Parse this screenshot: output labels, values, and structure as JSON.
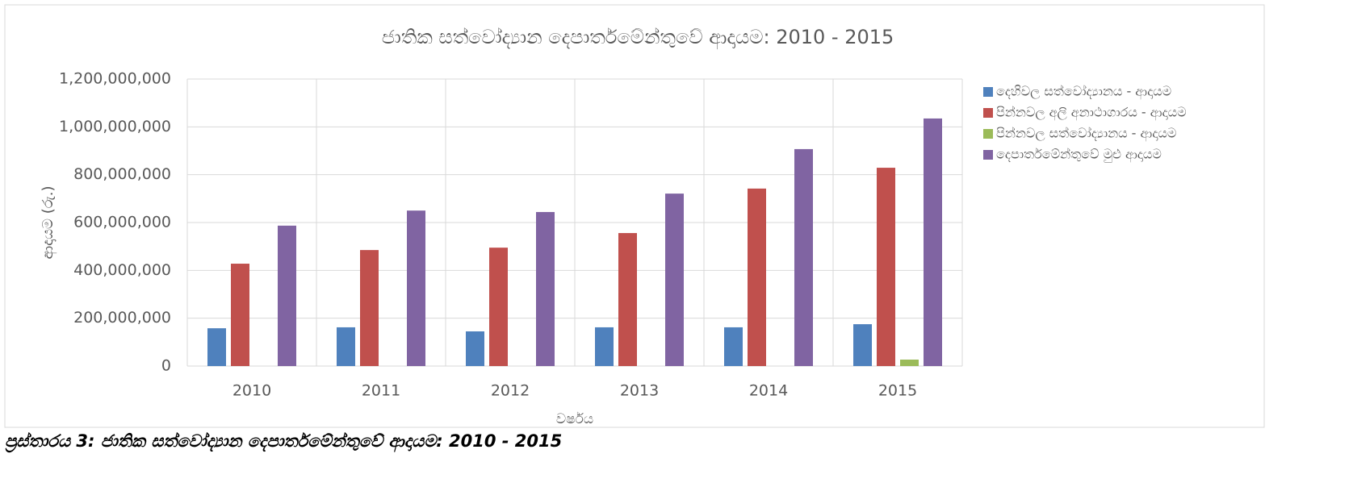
{
  "chart_data": {
    "type": "bar",
    "title": "ජාතික සත්වෝද්‍යාන දෙපාර්තමේන්තුවේ ආදායම: 2010 - 2015",
    "y_label": "ආදායම (රු.)",
    "x_label": "වර්ෂය",
    "caption": "ප්‍රස්තාරය 3: ජාතික සත්වෝද්‍යාන දෙපාර්තමේන්තුවේ ආදායම: 2010 - 2015",
    "categories": [
      "2010",
      "2011",
      "2012",
      "2013",
      "2014",
      "2015"
    ],
    "series": [
      {
        "name": "දෙහිවල සත්වෝද්‍යානය - ආදායම",
        "color": "#4f81bd",
        "values": [
          158000000,
          162000000,
          145000000,
          162000000,
          162000000,
          175000000
        ]
      },
      {
        "name": "පින්නවල අලි අනාථාගාරය  - ආදායම",
        "color": "#c0504d",
        "values": [
          428000000,
          485000000,
          495000000,
          556000000,
          742000000,
          829000000
        ]
      },
      {
        "name": "පින්නවල සත්වෝද්‍යානය  - ආදායම",
        "color": "#9bbb59",
        "values": [
          0,
          0,
          0,
          0,
          0,
          27000000
        ]
      },
      {
        "name": "දෙපාර්තමේන්තුවේ මුළු  ආදායම",
        "color": "#8064a2",
        "values": [
          587000000,
          650000000,
          644000000,
          721000000,
          907000000,
          1035000000
        ]
      }
    ],
    "ylim": [
      0,
      1200000000
    ],
    "yticks": [
      0,
      {
        "value": 200000000,
        "label": "200,000,000"
      },
      {
        "value": 400000000,
        "label": "400,000,000"
      },
      {
        "value": 600000000,
        "label": "600,000,000"
      },
      {
        "value": 800000000,
        "label": "800,000,000"
      },
      {
        "value": 1000000000,
        "label": "1,000,000,000"
      },
      {
        "value": 1200000000,
        "label": "1,200,000,000"
      }
    ],
    "grid": true,
    "legend": "right"
  }
}
